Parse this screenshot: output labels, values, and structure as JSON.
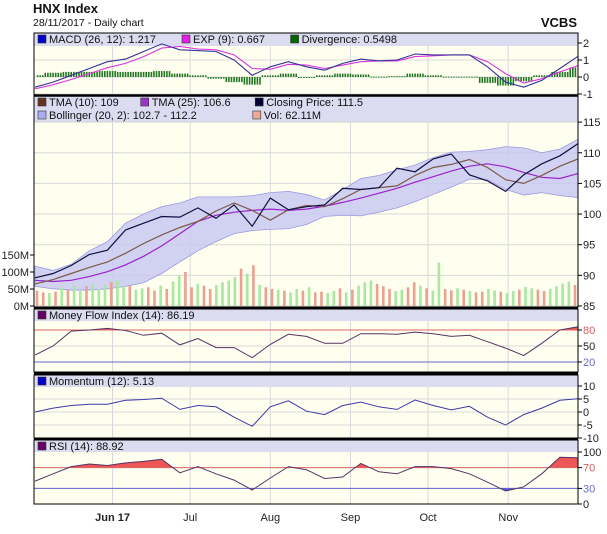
{
  "header": {
    "title": "HNX Index",
    "subtitle": "28/11/2017 - Daily chart",
    "brand": "VCBS"
  },
  "colors": {
    "plot_bg": "#fffff0",
    "legend_bg": "#dcdcf0",
    "macd": "#333399",
    "exp": "#dd33dd",
    "divergence": "#227722",
    "close": "#101040",
    "tma10": "#7a5a48",
    "tma25": "#9922cc",
    "bollinger_fill": "#c9c9f2",
    "bollinger_edge": "#9a9ae0",
    "vol_up": "#a8e8a0",
    "vol_down": "#eca090",
    "osc_line": "#553366",
    "overbought": "#ee5555",
    "oversold": "#5555dd"
  },
  "chart_data": {
    "type": "line",
    "x": [
      "2017-05-02",
      "2017-05-09",
      "2017-05-16",
      "2017-05-23",
      "2017-05-30",
      "2017-06-06",
      "2017-06-13",
      "2017-06-20",
      "2017-06-27",
      "2017-07-04",
      "2017-07-11",
      "2017-07-18",
      "2017-07-25",
      "2017-08-01",
      "2017-08-08",
      "2017-08-15",
      "2017-08-22",
      "2017-08-29",
      "2017-09-05",
      "2017-09-12",
      "2017-09-19",
      "2017-09-26",
      "2017-10-03",
      "2017-10-10",
      "2017-10-17",
      "2017-10-24",
      "2017-10-31",
      "2017-11-07",
      "2017-11-14",
      "2017-11-21",
      "2017-11-28"
    ],
    "x_tick_labels": [
      "Jun 17",
      "Jul",
      "Aug",
      "Sep",
      "Oct",
      "Nov"
    ],
    "x_tick_dates": [
      "2017-06-01",
      "2017-07-01",
      "2017-08-01",
      "2017-09-01",
      "2017-10-01",
      "2017-11-01"
    ],
    "grid": true,
    "panels": {
      "macd": {
        "legend": [
          {
            "label": "MACD (26, 12): 1.217",
            "color": "#0000cc"
          },
          {
            "label": "EXP (9): 0.667",
            "color": "#e020e0"
          },
          {
            "label": "Divergence: 0.5498",
            "color": "#006600"
          }
        ],
        "ylim": [
          -1,
          2.4
        ],
        "ticks": [
          "2",
          "1",
          "0",
          "-1"
        ],
        "tick_values": [
          2,
          1,
          0,
          -1
        ],
        "macd": [
          -0.6,
          -0.3,
          0.1,
          0.5,
          0.9,
          1.05,
          1.5,
          1.95,
          1.6,
          1.55,
          1.5,
          1.0,
          0.1,
          0.6,
          0.9,
          0.6,
          0.4,
          0.8,
          1.05,
          0.95,
          1.0,
          1.35,
          1.3,
          1.3,
          1.3,
          0.6,
          -0.3,
          -0.6,
          -0.2,
          0.5,
          1.217
        ],
        "exp": [
          -0.7,
          -0.45,
          -0.15,
          0.2,
          0.55,
          0.8,
          1.2,
          1.7,
          1.8,
          1.65,
          1.6,
          1.3,
          0.5,
          0.45,
          0.75,
          0.7,
          0.5,
          0.7,
          0.9,
          0.95,
          0.95,
          1.2,
          1.25,
          1.3,
          1.3,
          0.9,
          0.2,
          -0.35,
          -0.1,
          0.3,
          0.667
        ],
        "divergence": [
          0.1,
          0.25,
          0.3,
          0.3,
          0.35,
          0.3,
          0.3,
          0.35,
          0.2,
          0.1,
          -0.1,
          -0.3,
          -0.45,
          0.1,
          0.2,
          -0.05,
          0.1,
          0.2,
          0.15,
          0.02,
          0.05,
          0.2,
          0.1,
          0.02,
          0.02,
          -0.35,
          -0.5,
          -0.25,
          0.1,
          0.3,
          0.5498
        ]
      },
      "price": {
        "legend": [
          {
            "label": "TMA (10): 109",
            "color": "#663322"
          },
          {
            "label": "TMA (25): 106.6",
            "color": "#9933cc"
          },
          {
            "label": "Closing Price: 111.5",
            "color": "#000033"
          },
          {
            "label": "Bollinger (20, 2): 102.7 - 112.2",
            "color": "#a8aef0"
          },
          {
            "label": "Vol: 62.11M",
            "color": "#f0a898"
          }
        ],
        "ylim": [
          85,
          115
        ],
        "ticks": [
          "115",
          "110",
          "105",
          "100",
          "95",
          "90",
          "85"
        ],
        "tick_values": [
          115,
          110,
          105,
          100,
          95,
          90,
          85
        ],
        "close": [
          89.6,
          90.3,
          91.6,
          93.4,
          94.1,
          97.4,
          98.5,
          99.6,
          99.5,
          101,
          99.3,
          101.5,
          98,
          102.6,
          100.7,
          101.2,
          101.5,
          104.2,
          104,
          104.3,
          107.5,
          106.9,
          109,
          109.8,
          106.4,
          105.4,
          103.7,
          106.4,
          108.2,
          109.5,
          111.5
        ],
        "tma10": [
          88.6,
          89.3,
          90.3,
          91.3,
          92.2,
          93.6,
          95.2,
          96.6,
          97.8,
          98.8,
          100.5,
          101.8,
          100.6,
          99,
          100.7,
          101.4,
          101.2,
          102.5,
          104,
          104.3,
          104.6,
          106.3,
          107.6,
          108.1,
          108.9,
          107.6,
          105.6,
          105,
          106.3,
          107.8,
          109
        ],
        "tma25": [
          89.2,
          89,
          89.2,
          89.8,
          90.6,
          91.7,
          93.1,
          94.8,
          96.8,
          98.8,
          99.8,
          100.3,
          100.6,
          100.8,
          100.6,
          100.8,
          101.3,
          101.9,
          102.6,
          103.4,
          104.2,
          105.2,
          106.1,
          107,
          107.8,
          108.2,
          107.7,
          106.8,
          106,
          105.8,
          106.6
        ],
        "bollinger_upper": [
          91.5,
          90.8,
          91.8,
          94,
          95.5,
          98.5,
          100,
          101.2,
          101.8,
          102.8,
          102.8,
          102.8,
          103,
          103.5,
          103.7,
          103.2,
          102.3,
          104,
          105.8,
          106.3,
          107.2,
          108,
          109.2,
          110.1,
          110.2,
          110.5,
          111,
          110.8,
          110,
          110.6,
          112.2
        ],
        "bollinger_lower": [
          88.2,
          87.8,
          87.6,
          87.6,
          87.8,
          88.2,
          88.8,
          90.3,
          92.2,
          94,
          95.5,
          96.8,
          97.3,
          97.5,
          97.6,
          98.3,
          99.6,
          99.8,
          99.7,
          100.3,
          101,
          102,
          103.2,
          104.4,
          105.7,
          105.6,
          104,
          103.1,
          103.5,
          103,
          102.7
        ]
      },
      "volume": {
        "ticks": [
          "150M",
          "100M",
          "50M",
          "0M"
        ],
        "tick_values": [
          150,
          100,
          50,
          0
        ],
        "values_m": [
          45,
          40,
          38,
          42,
          55,
          48,
          60,
          44,
          58,
          65,
          50,
          62,
          70,
          75,
          58,
          60,
          48,
          52,
          55,
          45,
          60,
          50,
          72,
          90,
          100,
          55,
          65,
          60,
          50,
          62,
          70,
          75,
          85,
          110,
          95,
          120,
          62,
          55,
          50,
          48,
          45,
          40,
          50,
          45,
          55,
          40,
          42,
          38,
          44,
          52,
          40,
          48,
          60,
          70,
          75,
          65,
          58,
          50,
          44,
          48,
          55,
          70,
          60,
          52,
          45,
          128,
          50,
          46,
          52,
          48,
          44,
          40,
          42,
          50,
          46,
          42,
          38,
          44,
          48,
          56,
          52,
          48,
          44,
          50,
          58,
          66,
          72,
          62
        ],
        "direction": [
          "d",
          "d",
          "u",
          "d",
          "u",
          "d",
          "u",
          "u",
          "d",
          "u",
          "u",
          "u",
          "d",
          "u",
          "u",
          "d",
          "u",
          "u",
          "d",
          "d",
          "u",
          "d",
          "u",
          "u",
          "d",
          "d",
          "u",
          "d",
          "d",
          "u",
          "u",
          "u",
          "u",
          "d",
          "u",
          "d",
          "u",
          "d",
          "d",
          "u",
          "d",
          "u",
          "u",
          "d",
          "u",
          "d",
          "d",
          "u",
          "u",
          "d",
          "u",
          "d",
          "u",
          "u",
          "u",
          "d",
          "d",
          "d",
          "u",
          "u",
          "d",
          "d",
          "u",
          "d",
          "u",
          "u",
          "d",
          "d",
          "u",
          "d",
          "u",
          "d",
          "d",
          "u",
          "u",
          "d",
          "u",
          "u",
          "d",
          "u",
          "u",
          "d",
          "d",
          "u",
          "u",
          "u",
          "u",
          "d"
        ]
      },
      "mfi": {
        "legend": [
          {
            "label": "Money Flow Index (14): 86.19",
            "color": "#660066"
          }
        ],
        "ylim": [
          0,
          100
        ],
        "ticks": [
          "80",
          "50",
          "20"
        ],
        "tick_values": [
          80,
          50,
          20
        ],
        "overbought": 80,
        "oversold": 20,
        "values": [
          33,
          50,
          78,
          80,
          83,
          79,
          70,
          74,
          52,
          64,
          47,
          47,
          28,
          53,
          72,
          68,
          55,
          55,
          73,
          73,
          72,
          76,
          73,
          68,
          70,
          58,
          46,
          32,
          55,
          80,
          86.19
        ]
      },
      "momentum": {
        "legend": [
          {
            "label": "Momentum (12): 5.13",
            "color": "#0000cc"
          }
        ],
        "ylim": [
          -10,
          10
        ],
        "ticks": [
          "10",
          "5",
          "0",
          "-5",
          "-10"
        ],
        "tick_values": [
          10,
          5,
          0,
          -5,
          -10
        ],
        "values": [
          0,
          1.5,
          2.5,
          3,
          3,
          4.5,
          4.8,
          5.3,
          1,
          2.5,
          2,
          -2,
          -5.5,
          2,
          4.3,
          0.3,
          -1,
          2.5,
          3.8,
          2,
          1,
          4.6,
          2.5,
          0.8,
          2.2,
          -2,
          -5,
          -1,
          1.5,
          4.5,
          5.13
        ]
      },
      "rsi": {
        "legend": [
          {
            "label": "RSI (14): 88.92",
            "color": "#660066"
          }
        ],
        "ylim": [
          0,
          100
        ],
        "ticks": [
          "100",
          "70",
          "30",
          "0"
        ],
        "tick_values": [
          100,
          70,
          30,
          0
        ],
        "overbought": 70,
        "oversold": 30,
        "values": [
          44,
          58,
          72,
          77,
          74,
          79,
          82,
          86,
          60,
          72,
          58,
          46,
          27,
          50,
          72,
          66,
          49,
          52,
          78,
          62,
          58,
          72,
          72,
          68,
          58,
          42,
          25,
          33,
          58,
          90,
          88.92
        ]
      }
    }
  }
}
